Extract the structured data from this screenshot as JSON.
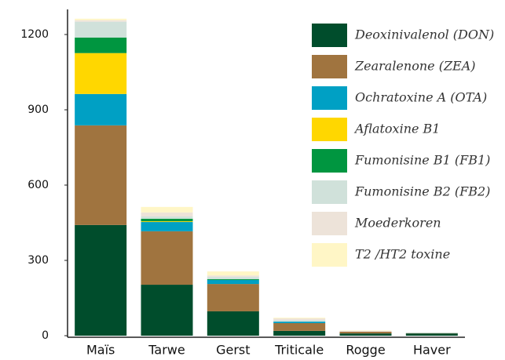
{
  "chart_data": {
    "type": "stacked-bar",
    "categories": [
      "Maïs",
      "Tarwe",
      "Gerst",
      "Triticale",
      "Rogge",
      "Haver"
    ],
    "series": [
      {
        "name": "Deoxinivalenol (DON)",
        "color": "#004d2c",
        "values": [
          441,
          203,
          97,
          19,
          9,
          9
        ]
      },
      {
        "name": "Zearalenone (ZEA)",
        "color": "#a0743f",
        "values": [
          397,
          213,
          109,
          31,
          7,
          1
        ]
      },
      {
        "name": "Ochratoxine A (OTA)",
        "color": "#00a0c4",
        "values": [
          125,
          37,
          16,
          6,
          0,
          0
        ]
      },
      {
        "name": "Aflatoxine B1",
        "color": "#ffd700",
        "values": [
          163,
          3,
          0,
          0,
          0,
          0
        ]
      },
      {
        "name": "Fumonisine B1 (FB1)",
        "color": "#009640",
        "values": [
          62,
          10,
          3,
          0,
          0,
          0
        ]
      },
      {
        "name": "Fumonisine B2 (FB2)",
        "color": "#d0e1da",
        "values": [
          63,
          9,
          9,
          6,
          0,
          3
        ]
      },
      {
        "name": "Moederkoren",
        "color": "#ede3d9",
        "values": [
          6,
          16,
          6,
          7,
          3,
          0
        ]
      },
      {
        "name": "T2 /HT2 toxine",
        "color": "#fff6c6",
        "values": [
          6,
          22,
          16,
          3,
          2,
          0
        ]
      }
    ],
    "ylim": [
      0,
      1300
    ],
    "yticks": [
      0,
      300,
      600,
      900,
      1200
    ],
    "legend": "top-right"
  }
}
